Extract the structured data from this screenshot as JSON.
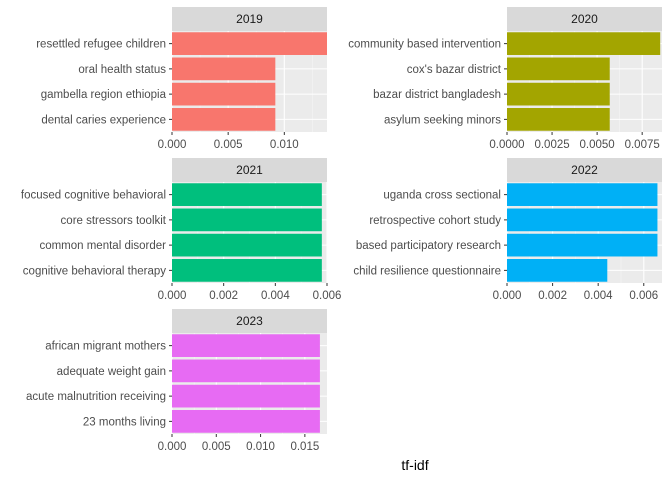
{
  "chart_data": {
    "type": "bar",
    "orientation": "horizontal",
    "facet": "year",
    "xlabel": "tf-idf",
    "ylabel": "",
    "grid": true,
    "legend": "none",
    "panels": [
      {
        "title": "2019",
        "color": "#F8766D",
        "categories": [
          "resettled refugee children",
          "oral health status",
          "gambella region ethiopia",
          "dental caries experience"
        ],
        "values": [
          0.0138,
          0.0092,
          0.0092,
          0.0092
        ],
        "xlim": [
          0,
          0.0138
        ],
        "ticks": [
          0.0,
          0.005,
          0.01
        ],
        "tick_labels": [
          "0.000",
          "0.005",
          "0.010"
        ]
      },
      {
        "title": "2020",
        "color": "#A3A500",
        "categories": [
          "community based intervention",
          "cox's bazar district",
          "bazar district bangladesh",
          "asylum seeking minors"
        ],
        "values": [
          0.0085,
          0.0057,
          0.0057,
          0.0057
        ],
        "xlim": [
          0,
          0.0086
        ],
        "ticks": [
          0.0,
          0.0025,
          0.005,
          0.0075
        ],
        "tick_labels": [
          "0.0000",
          "0.0025",
          "0.0050",
          "0.0075"
        ]
      },
      {
        "title": "2021",
        "color": "#00BF7D",
        "categories": [
          "focused cognitive behavioral",
          "core stressors toolkit",
          "common mental disorder",
          "cognitive behavioral therapy"
        ],
        "values": [
          0.0058,
          0.0058,
          0.0058,
          0.0058
        ],
        "xlim": [
          0,
          0.006
        ],
        "ticks": [
          0.0,
          0.002,
          0.004,
          0.006
        ],
        "tick_labels": [
          "0.000",
          "0.002",
          "0.004",
          "0.006"
        ]
      },
      {
        "title": "2022",
        "color": "#00B0F6",
        "categories": [
          "uganda cross sectional",
          "retrospective cohort study",
          "based participatory research",
          "child resilience questionnaire"
        ],
        "values": [
          0.0066,
          0.0066,
          0.0066,
          0.0044
        ],
        "xlim": [
          0,
          0.0068
        ],
        "ticks": [
          0.0,
          0.002,
          0.004,
          0.006
        ],
        "tick_labels": [
          "0.000",
          "0.002",
          "0.004",
          "0.006"
        ]
      },
      {
        "title": "2023",
        "color": "#E76BF3",
        "categories": [
          "african migrant mothers",
          "adequate weight gain",
          "acute malnutrition receiving",
          "23 months living"
        ],
        "values": [
          0.0167,
          0.0167,
          0.0167,
          0.0167
        ],
        "xlim": [
          0,
          0.0175
        ],
        "ticks": [
          0.0,
          0.005,
          0.01,
          0.015
        ],
        "tick_labels": [
          "0.000",
          "0.005",
          "0.010",
          "0.015"
        ]
      }
    ]
  }
}
